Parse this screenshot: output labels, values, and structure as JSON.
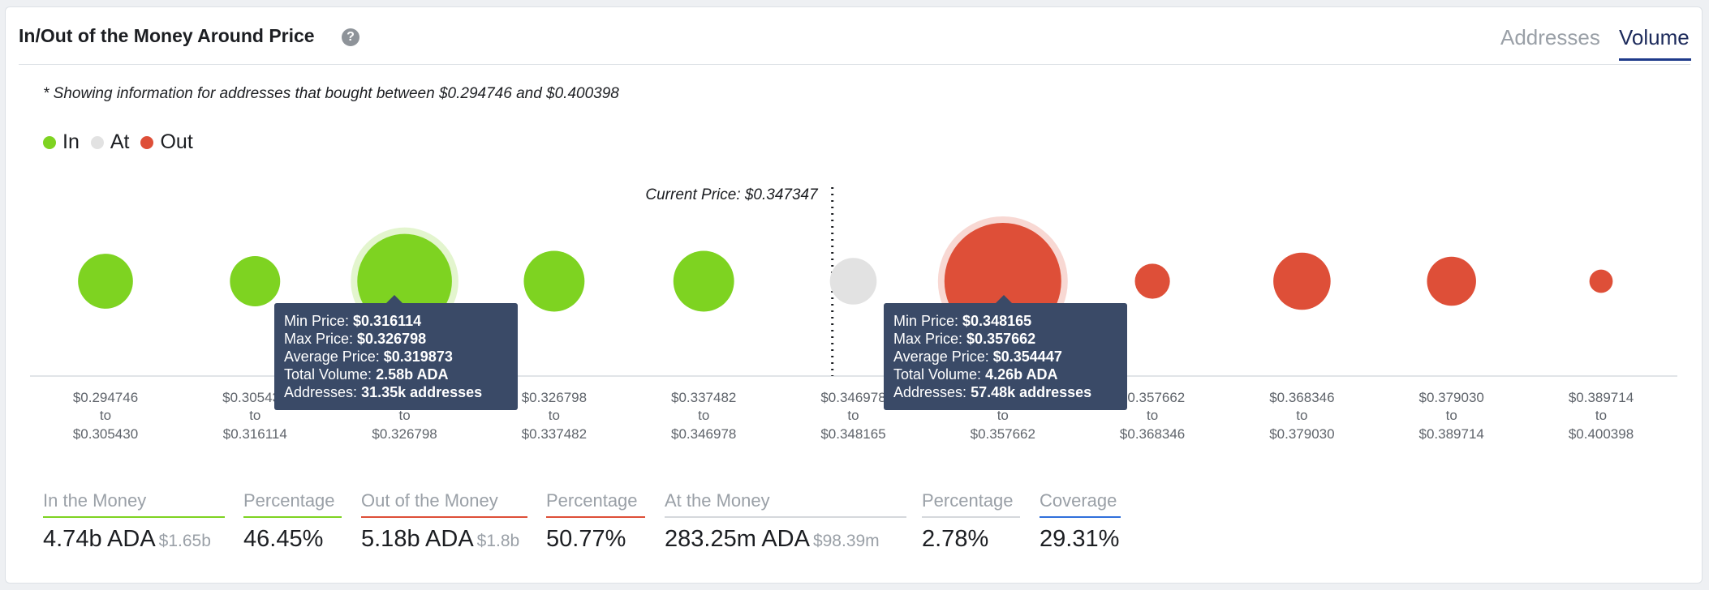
{
  "header": {
    "title": "In/Out of the Money Around Price",
    "help_icon": "question-circle-icon",
    "tabs": [
      {
        "label": "Addresses",
        "active": false
      },
      {
        "label": "Volume",
        "active": true
      }
    ]
  },
  "note": "* Showing information for addresses that bought between $0.294746 and $0.400398",
  "legend": [
    {
      "label": "In",
      "color": "#7ed321"
    },
    {
      "label": "At",
      "color": "#e2e2e2"
    },
    {
      "label": "Out",
      "color": "#de4f38"
    }
  ],
  "chart_data": {
    "type": "bubble",
    "current_price_label": "Current Price: $0.347347",
    "current_price": 0.347347,
    "colors": {
      "in": "#7ed321",
      "at": "#e2e2e2",
      "out": "#de4f38"
    },
    "bins": [
      {
        "from": "$0.294746",
        "to": "$0.305430",
        "status": "in",
        "rel_size": 0.47
      },
      {
        "from": "$0.305430",
        "to": "$0.316114",
        "status": "in",
        "rel_size": 0.43
      },
      {
        "from": "$0.316114",
        "to": "$0.326798",
        "status": "in",
        "rel_size": 0.81,
        "volume": "2.58b ADA",
        "addresses": "31.35k addresses",
        "highlighted": true
      },
      {
        "from": "$0.326798",
        "to": "$0.337482",
        "status": "in",
        "rel_size": 0.52
      },
      {
        "from": "$0.337482",
        "to": "$0.346978",
        "status": "in",
        "rel_size": 0.52
      },
      {
        "from": "$0.346978",
        "to": "$0.348165",
        "status": "at",
        "rel_size": 0.4
      },
      {
        "from": "$0.348165",
        "to": "$0.357662",
        "status": "out",
        "rel_size": 1.0,
        "volume": "4.26b ADA",
        "addresses": "57.48k addresses",
        "highlighted": true
      },
      {
        "from": "$0.357662",
        "to": "$0.368346",
        "status": "out",
        "rel_size": 0.3
      },
      {
        "from": "$0.368346",
        "to": "$0.379030",
        "status": "out",
        "rel_size": 0.49
      },
      {
        "from": "$0.379030",
        "to": "$0.389714",
        "status": "out",
        "rel_size": 0.42
      },
      {
        "from": "$0.389714",
        "to": "$0.400398",
        "status": "out",
        "rel_size": 0.2
      }
    ],
    "tick_word": "to"
  },
  "tooltips": [
    {
      "min_label": "Min Price:",
      "min_value": "$0.316114",
      "max_label": "Max Price:",
      "max_value": "$0.326798",
      "avg_label": "Average Price:",
      "avg_value": "$0.319873",
      "vol_label": "Total Volume:",
      "vol_value": "2.58b ADA",
      "addr_label": "Addresses:",
      "addr_value": "31.35k addresses"
    },
    {
      "min_label": "Min Price:",
      "min_value": "$0.348165",
      "max_label": "Max Price:",
      "max_value": "$0.357662",
      "avg_label": "Average Price:",
      "avg_value": "$0.354447",
      "vol_label": "Total Volume:",
      "vol_value": "4.26b ADA",
      "addr_label": "Addresses:",
      "addr_value": "57.48k addresses"
    }
  ],
  "stats": {
    "in_label": "In the Money",
    "in_value": "4.74b ADA",
    "in_sub": "$1.65b",
    "in_pct_label": "Percentage",
    "in_pct_value": "46.45%",
    "out_label": "Out of the Money",
    "out_value": "5.18b ADA",
    "out_sub": "$1.8b",
    "out_pct_label": "Percentage",
    "out_pct_value": "50.77%",
    "at_label": "At the Money",
    "at_value": "283.25m ADA",
    "at_sub": "$98.39m",
    "at_pct_label": "Percentage",
    "at_pct_value": "2.78%",
    "coverage_label": "Coverage",
    "coverage_value": "29.31%",
    "colors": {
      "in": "#7ed321",
      "out": "#de4f38",
      "at": "#d5d8dc",
      "coverage": "#2f6fdb"
    }
  }
}
